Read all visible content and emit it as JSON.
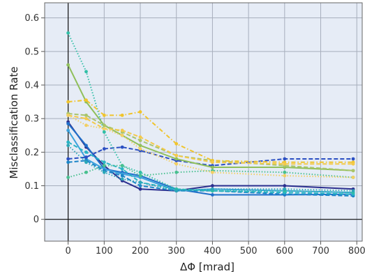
{
  "chart_data": {
    "type": "line",
    "xlabel": "ΔΦ [mrad]",
    "ylabel": "Misclassification Rate",
    "xlim": [
      -65,
      815
    ],
    "ylim": [
      -0.065,
      0.645
    ],
    "x_ticks": [
      0,
      100,
      200,
      300,
      400,
      500,
      600,
      700,
      800
    ],
    "y_ticks": [
      0,
      0.1,
      0.2,
      0.3,
      0.4,
      0.5,
      0.6
    ],
    "grid": true,
    "background": "#e6ecf6",
    "x": [
      0,
      50,
      100,
      150,
      200,
      300,
      400,
      600,
      790
    ],
    "series": [
      {
        "color": "#2b2f8f",
        "dash": "solid",
        "marker": true,
        "values": [
          0.29,
          0.215,
          0.16,
          0.115,
          0.09,
          0.085,
          0.1,
          0.1,
          0.09
        ]
      },
      {
        "color": "#1f6fc9",
        "dash": "solid",
        "marker": true,
        "values": [
          0.285,
          0.22,
          0.15,
          0.14,
          0.13,
          0.09,
          0.073,
          0.073,
          0.075
        ]
      },
      {
        "color": "#3aa0dc",
        "dash": "solid",
        "marker": true,
        "values": [
          0.265,
          0.18,
          0.15,
          0.135,
          0.125,
          0.085,
          0.09,
          0.085,
          0.08
        ]
      },
      {
        "color": "#2b4fc2",
        "dash": "dashed",
        "marker": true,
        "values": [
          0.18,
          0.185,
          0.21,
          0.215,
          0.205,
          0.175,
          0.16,
          0.18,
          0.18
        ]
      },
      {
        "color": "#1a85c7",
        "dash": "dashed",
        "marker": true,
        "values": [
          0.17,
          0.175,
          0.145,
          0.13,
          0.1,
          0.085,
          0.085,
          0.075,
          0.07
        ]
      },
      {
        "color": "#28b4c4",
        "dash": "dashed",
        "marker": true,
        "values": [
          0.23,
          0.2,
          0.17,
          0.15,
          0.11,
          0.09,
          0.085,
          0.08,
          0.075
        ]
      },
      {
        "color": "#2fbfa6",
        "dash": "dotted",
        "marker": true,
        "values": [
          0.555,
          0.44,
          0.26,
          0.16,
          0.14,
          0.09,
          0.085,
          0.085,
          0.08
        ]
      },
      {
        "color": "#48c08f",
        "dash": "dotted",
        "marker": true,
        "values": [
          0.125,
          0.14,
          0.16,
          0.16,
          0.13,
          0.14,
          0.145,
          0.14,
          0.125
        ]
      },
      {
        "color": "#2aa7b7",
        "dash": "dotted",
        "marker": true,
        "values": [
          0.22,
          0.17,
          0.14,
          0.12,
          0.11,
          0.085,
          0.09,
          0.09,
          0.085
        ]
      },
      {
        "color": "#8fbf5a",
        "dash": "solid",
        "marker": true,
        "values": [
          0.46,
          0.35,
          0.28,
          0.25,
          0.22,
          0.18,
          0.155,
          0.155,
          0.145
        ]
      },
      {
        "color": "#a9c46a",
        "dash": "dashed",
        "marker": true,
        "values": [
          0.315,
          0.31,
          0.28,
          0.26,
          0.235,
          0.19,
          0.175,
          0.16,
          0.145
        ]
      },
      {
        "color": "#f0c42c",
        "dash": "dashdot",
        "marker": true,
        "values": [
          0.35,
          0.355,
          0.31,
          0.31,
          0.32,
          0.225,
          0.175,
          0.17,
          0.17
        ]
      },
      {
        "color": "#f4c94a",
        "dash": "dashed",
        "marker": true,
        "values": [
          0.31,
          0.3,
          0.27,
          0.265,
          0.245,
          0.19,
          0.17,
          0.165,
          0.165
        ]
      },
      {
        "color": "#f2cf63",
        "dash": "dotted",
        "marker": true,
        "values": [
          0.31,
          0.28,
          0.27,
          0.25,
          0.21,
          0.165,
          0.14,
          0.13,
          0.125
        ]
      }
    ]
  }
}
